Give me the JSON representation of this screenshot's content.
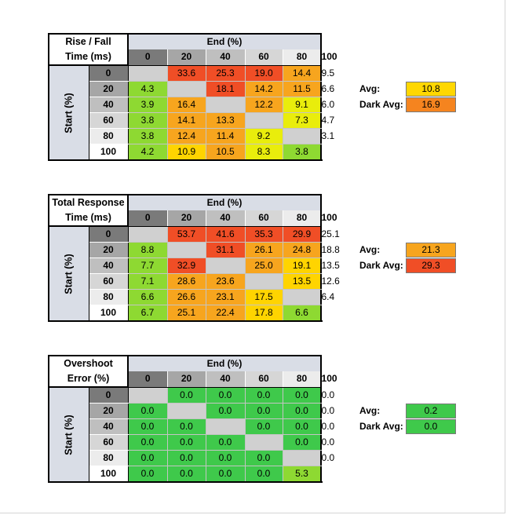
{
  "end_label": "End (%)",
  "start_label": "Start (%)",
  "avg_label": "Avg:",
  "dark_avg_label": "Dark Avg:",
  "columns": [
    "0",
    "20",
    "40",
    "60",
    "80",
    "100"
  ],
  "rows": [
    "0",
    "20",
    "40",
    "60",
    "80",
    "100"
  ],
  "tables": [
    {
      "title_line1": "Rise / Fall",
      "title_line2": "Time (ms)",
      "avg": "10.8",
      "avg_color": "#ffd700",
      "dark_avg": "16.9",
      "dark_avg_color": "#f5841f",
      "values": [
        [
          "",
          "33.6",
          "25.3",
          "19.0",
          "14.4",
          "9.5"
        ],
        [
          "4.3",
          "",
          "18.1",
          "14.2",
          "11.5",
          "6.6"
        ],
        [
          "3.9",
          "16.4",
          "",
          "12.2",
          "9.1",
          "6.0"
        ],
        [
          "3.8",
          "14.1",
          "13.3",
          "",
          "7.3",
          "4.7"
        ],
        [
          "3.8",
          "12.4",
          "11.4",
          "9.2",
          "",
          "3.1"
        ],
        [
          "4.2",
          "10.9",
          "10.5",
          "8.3",
          "3.8",
          ""
        ]
      ],
      "colors": [
        [
          "#d0d0d0",
          "#f04e26",
          "#f04e26",
          "#f04e26",
          "#f7a51e",
          "#e9ed0c"
        ],
        [
          "#8ed932",
          "#d0d0d0",
          "#f04e26",
          "#f7a51e",
          "#f7a51e",
          "#e9ed0c"
        ],
        [
          "#8ed932",
          "#f7a51e",
          "#d0d0d0",
          "#f7a51e",
          "#e9ed0c",
          "#e9ed0c"
        ],
        [
          "#8ed932",
          "#f7a51e",
          "#f7a51e",
          "#d0d0d0",
          "#e9ed0c",
          "#8ed932"
        ],
        [
          "#8ed932",
          "#f7a51e",
          "#f7a51e",
          "#e9ed0c",
          "#d0d0d0",
          "#8ed932"
        ],
        [
          "#8ed932",
          "#ffd400",
          "#f7a51e",
          "#e9ed0c",
          "#8ed932",
          "#d0d0d0"
        ]
      ]
    },
    {
      "title_line1": "Total Response",
      "title_line2": "Time (ms)",
      "avg": "21.3",
      "avg_color": "#f7a51e",
      "dark_avg": "29.3",
      "dark_avg_color": "#f04e26",
      "values": [
        [
          "",
          "53.7",
          "41.6",
          "35.3",
          "29.9",
          "25.1"
        ],
        [
          "8.8",
          "",
          "31.1",
          "26.1",
          "24.8",
          "18.8"
        ],
        [
          "7.7",
          "32.9",
          "",
          "25.0",
          "19.1",
          "13.5"
        ],
        [
          "7.1",
          "28.6",
          "23.6",
          "",
          "13.5",
          "12.6"
        ],
        [
          "6.6",
          "26.6",
          "23.1",
          "17.5",
          "",
          "6.4"
        ],
        [
          "6.7",
          "25.1",
          "22.4",
          "17.8",
          "6.6",
          ""
        ]
      ],
      "colors": [
        [
          "#d0d0d0",
          "#f04e26",
          "#f04e26",
          "#f04e26",
          "#f04e26",
          "#f04e26"
        ],
        [
          "#8ed932",
          "#d0d0d0",
          "#f04e26",
          "#f7a51e",
          "#f7a51e",
          "#f7a51e"
        ],
        [
          "#8ed932",
          "#f04e26",
          "#d0d0d0",
          "#f7a51e",
          "#ffd400",
          "#ffd400"
        ],
        [
          "#8ed932",
          "#f7a51e",
          "#f7a51e",
          "#d0d0d0",
          "#ffd400",
          "#ffd400"
        ],
        [
          "#8ed932",
          "#f7a51e",
          "#f7a51e",
          "#ffd400",
          "#d0d0d0",
          "#8ed932"
        ],
        [
          "#8ed932",
          "#f7a51e",
          "#f7a51e",
          "#ffd400",
          "#8ed932",
          "#d0d0d0"
        ]
      ]
    },
    {
      "title_line1": "Overshoot",
      "title_line2": "Error (%)",
      "avg": "0.2",
      "avg_color": "#3fc94b",
      "dark_avg": "0.0",
      "dark_avg_color": "#3fc94b",
      "values": [
        [
          "",
          "0.0",
          "0.0",
          "0.0",
          "0.0",
          "0.0"
        ],
        [
          "0.0",
          "",
          "0.0",
          "0.0",
          "0.0",
          "0.0"
        ],
        [
          "0.0",
          "0.0",
          "",
          "0.0",
          "0.0",
          "0.0"
        ],
        [
          "0.0",
          "0.0",
          "0.0",
          "",
          "0.0",
          "0.0"
        ],
        [
          "0.0",
          "0.0",
          "0.0",
          "0.0",
          "",
          "0.0"
        ],
        [
          "0.0",
          "0.0",
          "0.0",
          "0.0",
          "5.3",
          ""
        ]
      ],
      "colors": [
        [
          "#d0d0d0",
          "#3fc94b",
          "#3fc94b",
          "#3fc94b",
          "#3fc94b",
          "#3fc94b"
        ],
        [
          "#3fc94b",
          "#d0d0d0",
          "#3fc94b",
          "#3fc94b",
          "#3fc94b",
          "#3fc94b"
        ],
        [
          "#3fc94b",
          "#3fc94b",
          "#d0d0d0",
          "#3fc94b",
          "#3fc94b",
          "#3fc94b"
        ],
        [
          "#3fc94b",
          "#3fc94b",
          "#3fc94b",
          "#d0d0d0",
          "#3fc94b",
          "#3fc94b"
        ],
        [
          "#3fc94b",
          "#3fc94b",
          "#3fc94b",
          "#3fc94b",
          "#d0d0d0",
          "#3fc94b"
        ],
        [
          "#3fc94b",
          "#3fc94b",
          "#3fc94b",
          "#3fc94b",
          "#8ed932",
          "#d0d0d0"
        ]
      ]
    }
  ],
  "header_colors": {
    "col": [
      "#7a7a7a",
      "#a6a6a6",
      "#bfbfbf",
      "#d6d6d6",
      "#ececec",
      "#ffffff"
    ],
    "row": [
      "#7a7a7a",
      "#a6a6a6",
      "#bfbfbf",
      "#d6d6d6",
      "#ececec",
      "#ffffff"
    ]
  }
}
